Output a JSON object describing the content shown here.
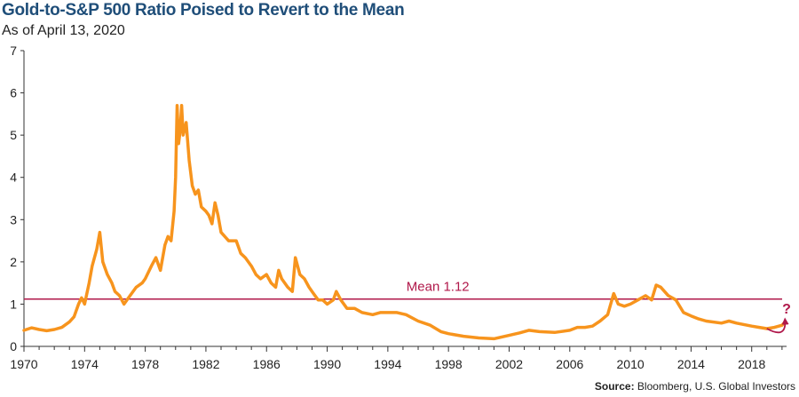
{
  "header": {
    "title": "Gold-to-S&P 500 Ratio Poised to Revert to the Mean",
    "subtitle": "As of April 13, 2020"
  },
  "footer": {
    "source_label": "Source:",
    "source_text": "Bloomberg, U.S. Global Investors"
  },
  "colors": {
    "series": "#f7941d",
    "mean": "#b0184a",
    "axis": "#333333",
    "title": "#1f4e79"
  },
  "chart_data": {
    "type": "line",
    "title": "Gold-to-S&P 500 Ratio Poised to Revert to the Mean",
    "subtitle": "As of April 13, 2020",
    "xlabel": "",
    "ylabel": "",
    "xlim": [
      1970,
      2020.3
    ],
    "ylim": [
      0,
      7
    ],
    "x_ticks": [
      "1970",
      "1974",
      "1978",
      "1982",
      "1986",
      "1990",
      "1994",
      "1998",
      "2002",
      "2006",
      "2010",
      "2014",
      "2018"
    ],
    "y_ticks": [
      "0",
      "1",
      "2",
      "3",
      "4",
      "5",
      "6",
      "7"
    ],
    "grid": false,
    "series": [
      {
        "points": [
          [
            1970.0,
            0.38
          ],
          [
            1970.5,
            0.44
          ],
          [
            1971.0,
            0.4
          ],
          [
            1971.5,
            0.37
          ],
          [
            1972.0,
            0.4
          ],
          [
            1972.5,
            0.45
          ],
          [
            1973.0,
            0.58
          ],
          [
            1973.3,
            0.7
          ],
          [
            1973.6,
            1.0
          ],
          [
            1973.8,
            1.15
          ],
          [
            1974.0,
            1.0
          ],
          [
            1974.3,
            1.5
          ],
          [
            1974.5,
            1.9
          ],
          [
            1974.8,
            2.3
          ],
          [
            1975.0,
            2.7
          ],
          [
            1975.2,
            2.0
          ],
          [
            1975.5,
            1.7
          ],
          [
            1975.8,
            1.5
          ],
          [
            1976.0,
            1.3
          ],
          [
            1976.3,
            1.2
          ],
          [
            1976.6,
            1.0
          ],
          [
            1977.0,
            1.2
          ],
          [
            1977.4,
            1.4
          ],
          [
            1977.8,
            1.5
          ],
          [
            1978.0,
            1.6
          ],
          [
            1978.4,
            1.9
          ],
          [
            1978.7,
            2.1
          ],
          [
            1979.0,
            1.8
          ],
          [
            1979.3,
            2.4
          ],
          [
            1979.5,
            2.6
          ],
          [
            1979.7,
            2.5
          ],
          [
            1979.9,
            3.2
          ],
          [
            1980.0,
            4.0
          ],
          [
            1980.1,
            5.7
          ],
          [
            1980.2,
            4.8
          ],
          [
            1980.3,
            5.1
          ],
          [
            1980.4,
            5.7
          ],
          [
            1980.5,
            5.0
          ],
          [
            1980.7,
            5.3
          ],
          [
            1980.9,
            4.4
          ],
          [
            1981.1,
            3.8
          ],
          [
            1981.3,
            3.6
          ],
          [
            1981.5,
            3.7
          ],
          [
            1981.7,
            3.3
          ],
          [
            1982.0,
            3.2
          ],
          [
            1982.2,
            3.1
          ],
          [
            1982.4,
            2.9
          ],
          [
            1982.6,
            3.4
          ],
          [
            1982.8,
            3.1
          ],
          [
            1983.0,
            2.7
          ],
          [
            1983.5,
            2.5
          ],
          [
            1984.0,
            2.5
          ],
          [
            1984.3,
            2.2
          ],
          [
            1984.6,
            2.1
          ],
          [
            1985.0,
            1.9
          ],
          [
            1985.3,
            1.7
          ],
          [
            1985.6,
            1.6
          ],
          [
            1986.0,
            1.7
          ],
          [
            1986.3,
            1.5
          ],
          [
            1986.6,
            1.4
          ],
          [
            1986.8,
            1.8
          ],
          [
            1987.0,
            1.6
          ],
          [
            1987.4,
            1.4
          ],
          [
            1987.7,
            1.3
          ],
          [
            1987.9,
            2.1
          ],
          [
            1988.2,
            1.7
          ],
          [
            1988.5,
            1.6
          ],
          [
            1988.8,
            1.4
          ],
          [
            1989.0,
            1.3
          ],
          [
            1989.4,
            1.1
          ],
          [
            1989.7,
            1.1
          ],
          [
            1990.0,
            1.0
          ],
          [
            1990.4,
            1.1
          ],
          [
            1990.6,
            1.3
          ],
          [
            1990.9,
            1.1
          ],
          [
            1991.3,
            0.9
          ],
          [
            1991.8,
            0.9
          ],
          [
            1992.3,
            0.8
          ],
          [
            1993.0,
            0.75
          ],
          [
            1993.5,
            0.8
          ],
          [
            1994.0,
            0.8
          ],
          [
            1994.6,
            0.8
          ],
          [
            1995.2,
            0.75
          ],
          [
            1996.0,
            0.6
          ],
          [
            1996.8,
            0.5
          ],
          [
            1997.5,
            0.35
          ],
          [
            1998.0,
            0.3
          ],
          [
            1999.0,
            0.24
          ],
          [
            2000.0,
            0.2
          ],
          [
            2001.0,
            0.18
          ],
          [
            2002.0,
            0.26
          ],
          [
            2002.7,
            0.32
          ],
          [
            2003.3,
            0.38
          ],
          [
            2004.0,
            0.35
          ],
          [
            2005.0,
            0.33
          ],
          [
            2006.0,
            0.38
          ],
          [
            2006.5,
            0.45
          ],
          [
            2007.0,
            0.45
          ],
          [
            2007.5,
            0.48
          ],
          [
            2008.0,
            0.6
          ],
          [
            2008.5,
            0.75
          ],
          [
            2008.9,
            1.25
          ],
          [
            2009.2,
            1.0
          ],
          [
            2009.6,
            0.95
          ],
          [
            2010.0,
            1.0
          ],
          [
            2010.5,
            1.1
          ],
          [
            2011.0,
            1.2
          ],
          [
            2011.4,
            1.1
          ],
          [
            2011.7,
            1.45
          ],
          [
            2012.0,
            1.4
          ],
          [
            2012.5,
            1.2
          ],
          [
            2013.0,
            1.1
          ],
          [
            2013.5,
            0.8
          ],
          [
            2014.0,
            0.72
          ],
          [
            2014.5,
            0.65
          ],
          [
            2015.0,
            0.6
          ],
          [
            2016.0,
            0.55
          ],
          [
            2016.5,
            0.6
          ],
          [
            2017.0,
            0.55
          ],
          [
            2018.0,
            0.48
          ],
          [
            2018.5,
            0.45
          ],
          [
            2019.0,
            0.42
          ],
          [
            2019.5,
            0.45
          ],
          [
            2020.0,
            0.5
          ],
          [
            2020.2,
            0.58
          ]
        ]
      }
    ],
    "mean_line": {
      "value": 1.12,
      "label": "Mean 1.12"
    },
    "annotations": [
      {
        "text": "?",
        "x": 2020.3,
        "y": 0.9
      }
    ]
  }
}
